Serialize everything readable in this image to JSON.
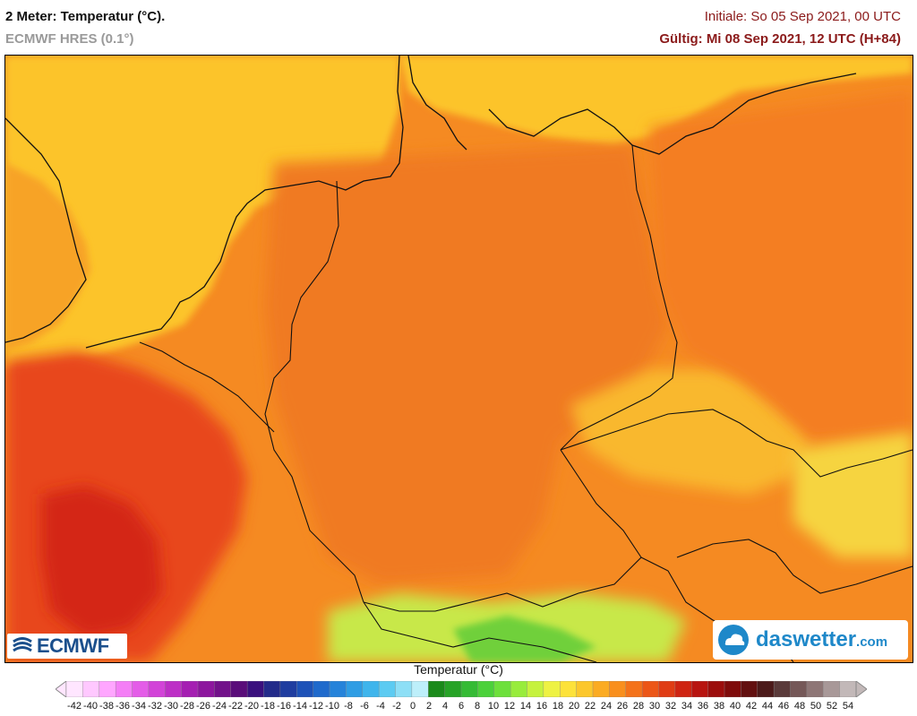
{
  "header": {
    "title": "2 Meter: Temperatur (°C).",
    "model": "ECMWF HRES (0.1°)",
    "init": "Initiale: So 05 Sep 2021, 00 UTC",
    "valid": "Gültig: Mi 08 Sep 2021, 12 UTC (H+84)"
  },
  "logos": {
    "ecmwf": "ECMWF",
    "daswetter_main": "daswetter",
    "daswetter_tld": ".com"
  },
  "legend": {
    "title": "Temperatur (°C)",
    "labels": [
      "-42",
      "-40",
      "-38",
      "-36",
      "-34",
      "-32",
      "-30",
      "-28",
      "-26",
      "-24",
      "-22",
      "-20",
      "-18",
      "-16",
      "-14",
      "-12",
      "-10",
      "-8",
      "-6",
      "-4",
      "-2",
      "0",
      "2",
      "4",
      "6",
      "8",
      "10",
      "12",
      "14",
      "16",
      "18",
      "20",
      "22",
      "24",
      "26",
      "28",
      "30",
      "32",
      "34",
      "36",
      "38",
      "40",
      "42",
      "44",
      "46",
      "48",
      "50",
      "52",
      "54"
    ],
    "colors": [
      "#ffe6ff",
      "#ffc8ff",
      "#ffa6ff",
      "#f47ef6",
      "#e45de8",
      "#d243d8",
      "#bd2fc6",
      "#a51fb2",
      "#8d169e",
      "#72118a",
      "#5a0d7a",
      "#3a107e",
      "#232b8a",
      "#1f3da0",
      "#1d52b8",
      "#1f6acc",
      "#2583da",
      "#2f9de4",
      "#3fb5ec",
      "#5ccbf2",
      "#8ddff6",
      "#bdeffa",
      "#1a8a1a",
      "#26a326",
      "#35bb35",
      "#4bd13a",
      "#6de03b",
      "#98ec3c",
      "#c6f23e",
      "#eef243",
      "#fde23a",
      "#fcc72c",
      "#fbab22",
      "#f98f1d",
      "#f4721a",
      "#ec5617",
      "#e03c14",
      "#cf2412",
      "#b81410",
      "#9c0d0c",
      "#7f0b0b",
      "#631010",
      "#4c1a1a",
      "#5a3a3a",
      "#755858",
      "#8e7676",
      "#a89898",
      "#c2b8b8"
    ]
  },
  "map": {
    "variable": "2 m temperature",
    "unit": "°C",
    "dominant_range": "20–30 °C"
  }
}
